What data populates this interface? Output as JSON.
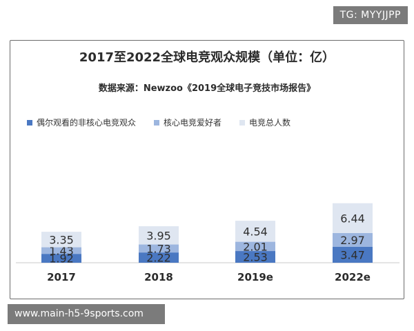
{
  "badge_top": "TG: MYYJJPP",
  "badge_bottom": "www.main-h5-9sports.com",
  "chart_data": {
    "type": "bar",
    "stacked": true,
    "title": "2017至2022全球电竞观众规模（单位：亿）",
    "subtitle": "数据来源：Newzoo《2019全球电子竞技市场报告》",
    "categories": [
      "2017",
      "2018",
      "2019e",
      "2022e"
    ],
    "series": [
      {
        "name": "偶尔观看的非核心电竞观众",
        "values": [
          1.92,
          2.22,
          2.53,
          3.47
        ],
        "color": "#4a78c2"
      },
      {
        "name": "核心电竞爱好者",
        "values": [
          1.43,
          1.73,
          2.01,
          2.97
        ],
        "color": "#9db6df"
      },
      {
        "name": "电竞总人数",
        "values": [
          3.35,
          3.95,
          4.54,
          6.44
        ],
        "color": "#dfe6f1"
      }
    ],
    "legend_position": "top-left",
    "grid": false
  }
}
